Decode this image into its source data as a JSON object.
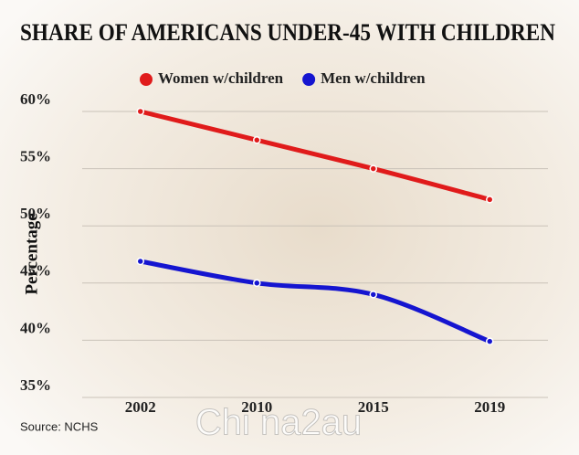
{
  "chart_data": {
    "type": "line",
    "title": "SHARE OF AMERICANS UNDER-45 WITH CHILDREN",
    "y_label": "Percentage",
    "source": "Source: NCHS",
    "watermark": "Chi na2au",
    "categories": [
      "2002",
      "2010",
      "2015",
      "2019"
    ],
    "series": [
      {
        "name": "Women w/children",
        "color": "#e01b1b",
        "values": [
          60,
          57.5,
          55,
          52.3
        ]
      },
      {
        "name": "Men w/children",
        "color": "#1515d0",
        "values": [
          46.9,
          45.0,
          44.0,
          39.9
        ]
      }
    ],
    "ylim": [
      35,
      60
    ],
    "yticks": [
      {
        "value": 35,
        "label": "35%"
      },
      {
        "value": 40,
        "label": "40%"
      },
      {
        "value": 45,
        "label": "45%"
      },
      {
        "value": 50,
        "label": "50%"
      },
      {
        "value": 55,
        "label": "55%"
      },
      {
        "value": 60,
        "label": "60%"
      }
    ],
    "grid": true
  }
}
